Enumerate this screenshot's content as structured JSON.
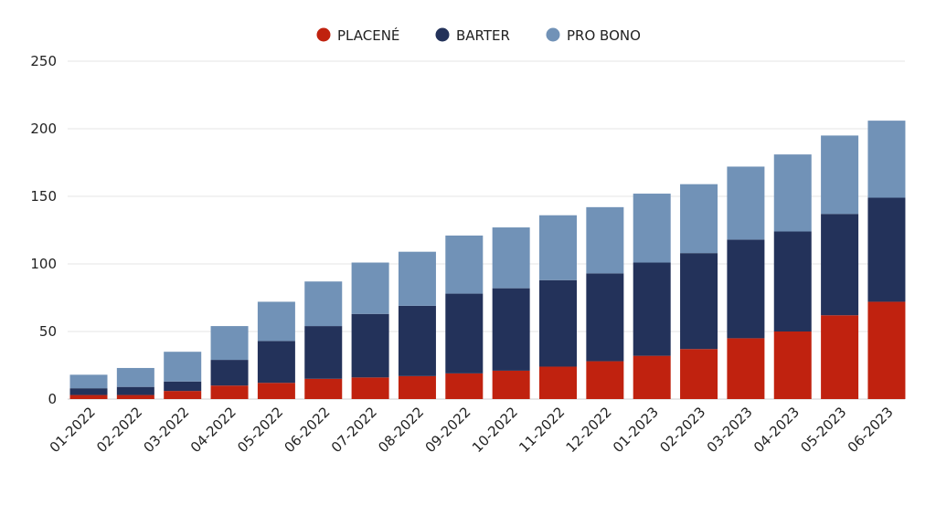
{
  "chart_data": {
    "type": "bar",
    "stacked": true,
    "categories": [
      "01-2022",
      "02-2022",
      "03-2022",
      "04-2022",
      "05-2022",
      "06-2022",
      "07-2022",
      "08-2022",
      "09-2022",
      "10-2022",
      "11-2022",
      "12-2022",
      "01-2023",
      "02-2023",
      "03-2023",
      "04-2023",
      "05-2023",
      "06-2023"
    ],
    "series": [
      {
        "name": "PLACENÉ",
        "color": "#c0220f",
        "values": [
          3,
          3,
          6,
          10,
          12,
          15,
          16,
          17,
          19,
          21,
          24,
          28,
          32,
          37,
          45,
          50,
          62,
          72
        ]
      },
      {
        "name": "BARTER",
        "color": "#23325a",
        "values": [
          5,
          6,
          7,
          19,
          31,
          39,
          47,
          52,
          59,
          61,
          64,
          65,
          69,
          71,
          73,
          74,
          75,
          77
        ]
      },
      {
        "name": "PRO BONO",
        "color": "#7192b7",
        "values": [
          10,
          14,
          22,
          25,
          29,
          33,
          38,
          40,
          43,
          45,
          48,
          49,
          51,
          51,
          54,
          57,
          58,
          57
        ]
      }
    ],
    "ylim": [
      0,
      250
    ],
    "yticks": [
      0,
      50,
      100,
      150,
      200,
      250
    ],
    "grid": true,
    "legend_position": "top-center",
    "title": "",
    "xlabel": "",
    "ylabel": ""
  }
}
